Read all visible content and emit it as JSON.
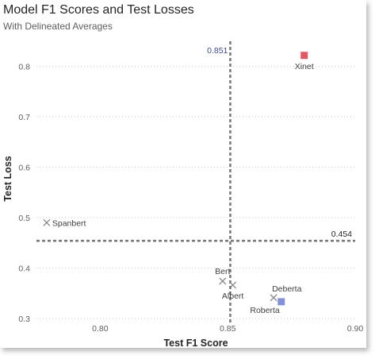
{
  "chart_data": {
    "type": "scatter",
    "title": "Model F1 Scores and Test Losses",
    "subtitle": "With Delineated Averages",
    "xlabel": "Test F1 Score",
    "ylabel": "Test Loss",
    "xlim": [
      0.775,
      0.9
    ],
    "ylim": [
      0.295,
      0.85
    ],
    "xticks": [
      0.8,
      0.85,
      0.9
    ],
    "xtick_labels": [
      "0.80",
      "0.85",
      "0.90"
    ],
    "yticks": [
      0.3,
      0.4,
      0.5,
      0.6,
      0.7,
      0.8
    ],
    "ytick_labels": [
      "0.3",
      "0.4",
      "0.5",
      "0.6",
      "0.7",
      "0.8"
    ],
    "grid": "horizontal dotted",
    "colors": {
      "xinet": "#e05a66",
      "roberta": "#8591d6",
      "cross": "#808080",
      "reference": "#7a7a7a"
    },
    "reference_lines": [
      {
        "axis": "x",
        "value": 0.851,
        "label": "0.851",
        "label_color": "#3a4a8a"
      },
      {
        "axis": "y",
        "value": 0.454,
        "label": "0.454",
        "label_color": "#252423"
      }
    ],
    "points": [
      {
        "name": "Xinet",
        "x": 0.88,
        "y": 0.822,
        "marker": "square",
        "color": "#e05a66",
        "label_pos": "below"
      },
      {
        "name": "Spanbert",
        "x": 0.779,
        "y": 0.49,
        "marker": "cross",
        "color": "#808080",
        "label_pos": "right"
      },
      {
        "name": "Bert",
        "x": 0.848,
        "y": 0.374,
        "marker": "cross",
        "color": "#808080",
        "label_pos": "above"
      },
      {
        "name": "Albert",
        "x": 0.852,
        "y": 0.366,
        "marker": "cross",
        "color": "#808080",
        "label_pos": "below"
      },
      {
        "name": "Deberta",
        "x": 0.868,
        "y": 0.341,
        "marker": "cross",
        "color": "#808080",
        "label_pos": "above-right"
      },
      {
        "name": "Roberta",
        "x": 0.871,
        "y": 0.333,
        "marker": "square",
        "color": "#8591d6",
        "label_pos": "below-left"
      }
    ]
  }
}
